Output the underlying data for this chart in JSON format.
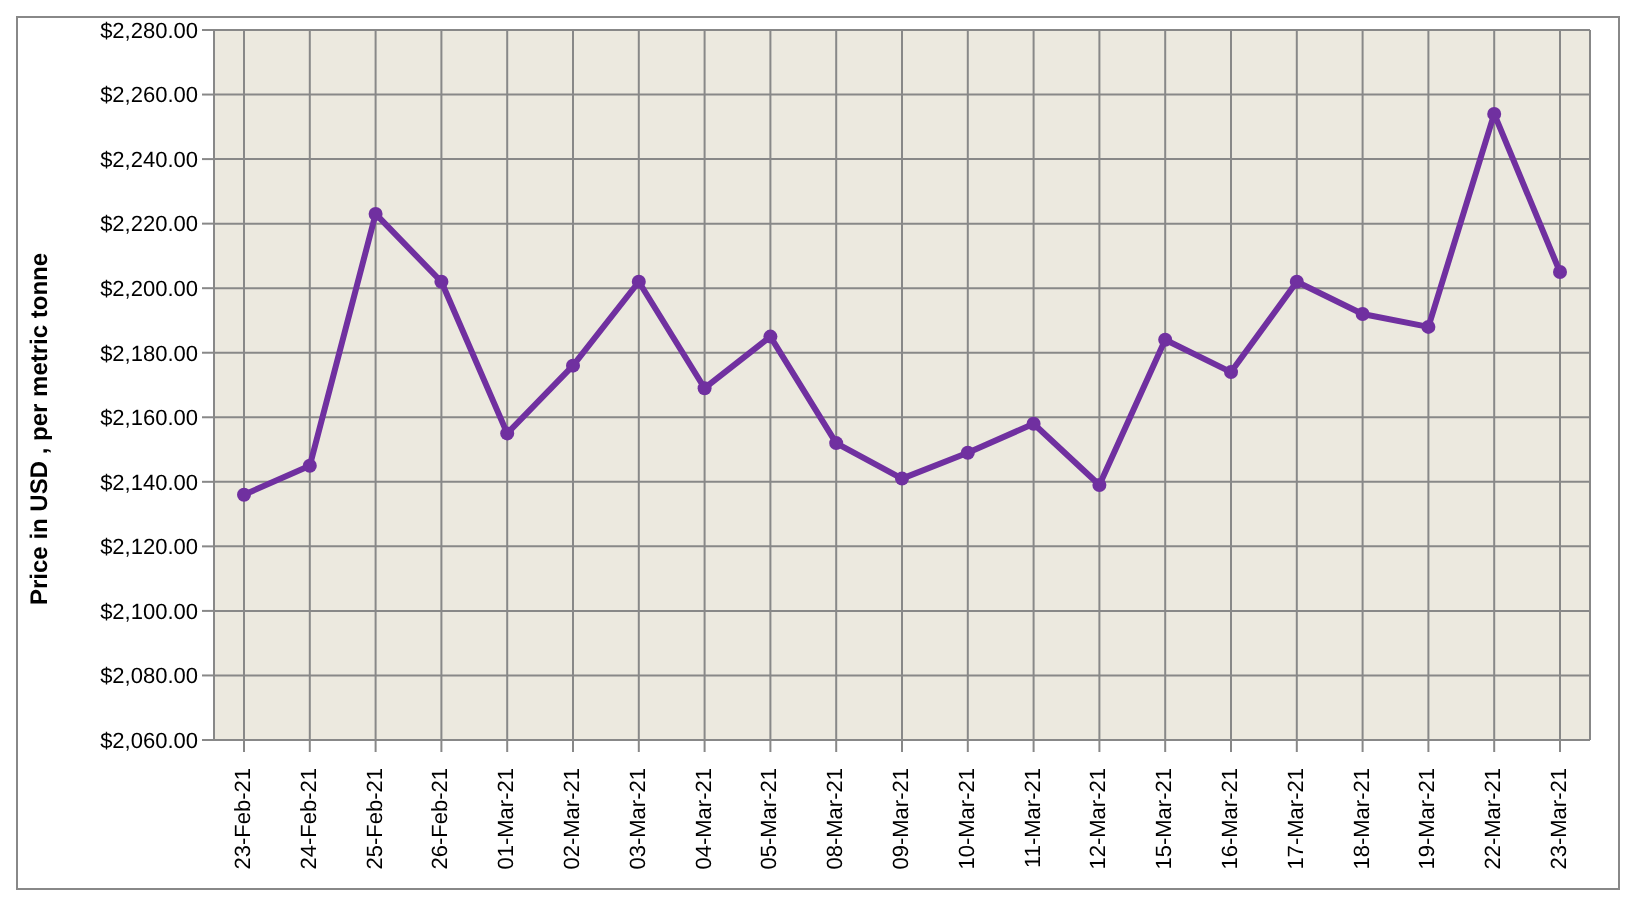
{
  "chart_data": {
    "type": "line",
    "ylabel": "Price in USD , per metric tonne",
    "categories": [
      "23-Feb-21",
      "24-Feb-21",
      "25-Feb-21",
      "26-Feb-21",
      "01-Mar-21",
      "02-Mar-21",
      "03-Mar-21",
      "04-Mar-21",
      "05-Mar-21",
      "08-Mar-21",
      "09-Mar-21",
      "10-Mar-21",
      "11-Mar-21",
      "12-Mar-21",
      "15-Mar-21",
      "16-Mar-21",
      "17-Mar-21",
      "18-Mar-21",
      "19-Mar-21",
      "22-Mar-21",
      "23-Mar-21"
    ],
    "series": [
      {
        "color": "#7030a0",
        "values": [
          2136,
          2145,
          2223,
          2202,
          2155,
          2176,
          2202,
          2169,
          2185,
          2152,
          2141,
          2149,
          2158,
          2139,
          2184,
          2174,
          2202,
          2192,
          2188,
          2254,
          2205
        ]
      }
    ],
    "ylim": [
      2060,
      2280
    ],
    "yticks": [
      {
        "value": 2060,
        "label": "$2,060.00"
      },
      {
        "value": 2080,
        "label": "$2,080.00"
      },
      {
        "value": 2100,
        "label": "$2,100.00"
      },
      {
        "value": 2120,
        "label": "$2,120.00"
      },
      {
        "value": 2140,
        "label": "$2,140.00"
      },
      {
        "value": 2160,
        "label": "$2,160.00"
      },
      {
        "value": 2180,
        "label": "$2,180.00"
      },
      {
        "value": 2200,
        "label": "$2,200.00"
      },
      {
        "value": 2220,
        "label": "$2,220.00"
      },
      {
        "value": 2240,
        "label": "$2,240.00"
      },
      {
        "value": 2260,
        "label": "$2,260.00"
      },
      {
        "value": 2280,
        "label": "$2,280.00"
      }
    ],
    "grid": true,
    "marker": "circle",
    "line_style": "solid",
    "legend": false
  }
}
